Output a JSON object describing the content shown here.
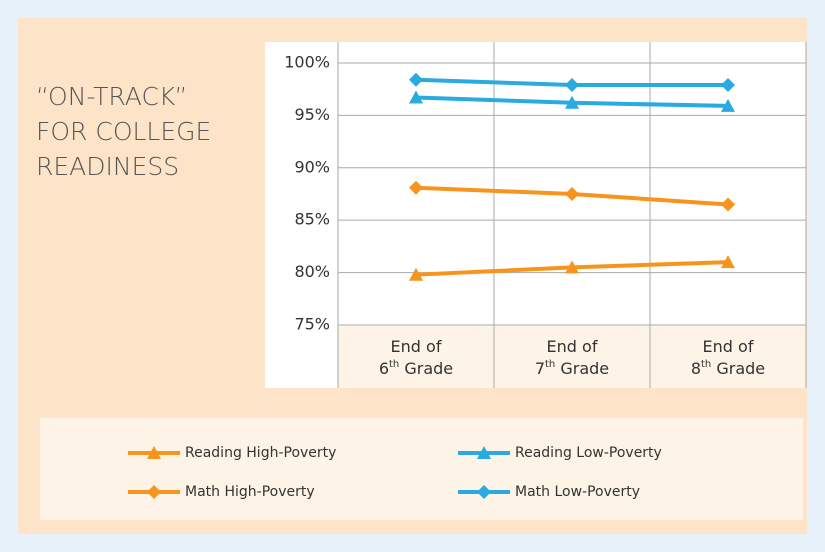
{
  "chart_data": {
    "type": "line",
    "title_lines": [
      "“ON-TRACK”",
      "FOR COLLEGE",
      "READINESS"
    ],
    "categories": [
      "End of 6th Grade",
      "End of 7th Grade",
      "End of 8th Grade"
    ],
    "series": [
      {
        "name": "Reading High-Poverty",
        "color": "#f7941d",
        "marker": "triangle",
        "values": [
          79.8,
          80.5,
          81.0
        ]
      },
      {
        "name": "Reading Low-Poverty",
        "color": "#29aae1",
        "marker": "triangle",
        "values": [
          96.7,
          96.2,
          95.9
        ]
      },
      {
        "name": "Math High-Poverty",
        "color": "#f7941d",
        "marker": "diamond",
        "values": [
          88.1,
          87.5,
          86.5
        ]
      },
      {
        "name": "Math Low-Poverty",
        "color": "#29aae1",
        "marker": "diamond",
        "values": [
          98.4,
          97.9,
          97.9
        ]
      }
    ],
    "ylim": [
      75,
      102
    ],
    "yticks": [
      {
        "value": 75,
        "label": "75%"
      },
      {
        "value": 80,
        "label": "80%"
      },
      {
        "value": 85,
        "label": "85%"
      },
      {
        "value": 90,
        "label": "90%"
      },
      {
        "value": 95,
        "label": "95%"
      },
      {
        "value": 100,
        "label": "100%"
      }
    ],
    "grid": true
  }
}
